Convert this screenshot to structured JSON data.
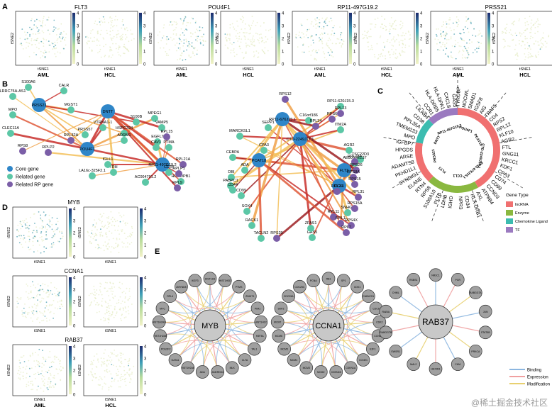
{
  "panel_labels": [
    "A",
    "B",
    "C",
    "D",
    "E"
  ],
  "panelA": {
    "genes": [
      "FLT3",
      "POU4F1",
      "RP11-497G19.2",
      "PRSS21"
    ],
    "groups": [
      "AML",
      "HCL"
    ],
    "xlabel": "tSNE1",
    "ylabel": "tSNE2",
    "colorbar_ticks": [
      "0",
      "1",
      "2",
      "3",
      "4"
    ]
  },
  "panelB": {
    "legend": [
      {
        "label": "Core gene",
        "color": "#2f86c8"
      },
      {
        "label": "Related gene",
        "color": "#5cc7a6"
      },
      {
        "label": "Related RP gene",
        "color": "#7b5ea7"
      }
    ],
    "net1": {
      "core": [
        "PRSS21",
        "POU4F1",
        "DNTT",
        "RP11-497G19.2"
      ],
      "related": [
        "S100A6",
        "LRRC75A-AS1",
        "CALR",
        "MPO",
        "MGST1",
        "CLEC11A",
        "PRSS57",
        "VTRNA1-1",
        "HSPC324",
        "ADRM1",
        "S100B",
        "MPEG1",
        "VAMP5",
        "EGFL7",
        "CAV1",
        "PTMA",
        "TRH",
        "IGLL1",
        "CD34",
        "AC004791.2",
        "HLA-DPB1",
        "LA16c-325F2.1"
      ],
      "rp": [
        "RPS8",
        "RPLP2",
        "RPL32A",
        "RPL15",
        "RPL21A",
        "RPLP1",
        "RPL9"
      ]
    },
    "net2": {
      "core": [
        "RP11-676J15.1",
        "CTD-2249J17.1",
        "FLT3",
        "CCL1",
        "PCAT18"
      ],
      "related": [
        "MARCKSL1",
        "CEBPA",
        "SEPP1",
        "RP11-620J15.3",
        "CPA3",
        "C16orf186",
        "ITM2A",
        "AGR2",
        "TSC22D3",
        "ADA",
        "DBI",
        "PABPC1",
        "CD44",
        "CD99",
        "SOX4",
        "RACK1",
        "TACLN2",
        "AE000661.37",
        "GAS5",
        "ZFAS1",
        "SNHG6"
      ],
      "rp": [
        "RPS12",
        "RPL34",
        "RPL13",
        "RPS6",
        "RPL18A",
        "RPS26",
        "RPS8A",
        "RPS20",
        "RPL11",
        "RPS15",
        "RPL29",
        "RPL1",
        "RPS4X",
        "RPL7",
        "RPS15A",
        "RPL31"
      ]
    }
  },
  "panelC": {
    "outer_labels": [
      "TYROBP",
      "NOCWL",
      "SMAD1",
      "IGSF8",
      "AIG",
      "TRAF5",
      "CD4",
      "RPS2",
      "RPL12",
      "KLF10",
      "AGR2",
      "FTL",
      "GNG11",
      "KRCC1",
      "KDF1",
      "CPA3",
      "CD74",
      "CD99",
      "CCND3",
      "ATP8B4",
      "AXL",
      "HLA-DRB1",
      "CD34",
      "NPR3",
      "IGHD",
      "LDHB",
      "PLTB",
      "S100A10",
      "RPS8",
      "RTN4",
      "ELANE",
      "SYNDIG1",
      "PKHD1L1",
      "ADAMTS8",
      "ARSE",
      "HPGDS",
      "IGFBP7",
      "MPO",
      "TMEM233",
      "RPL35A",
      "CD38",
      "LILRB4",
      "CCR1",
      "HLA-DRB5",
      "HLA-DPA1",
      "CXCL8",
      "GAS5"
    ],
    "inner_labels": [
      "POU4F1",
      "PCAT18",
      "CTD-2249J17.1",
      "RP11-676J15.1",
      "CCL1",
      "FLT3",
      "PRSS21",
      "DNTT",
      "RP11-497G19.2"
    ],
    "legend_title": "Gene Type",
    "legend": [
      {
        "label": "lncRNA",
        "color": "#f07070"
      },
      {
        "label": "Enzyme",
        "color": "#8ab840"
      },
      {
        "label": "Chemokine Ligand",
        "color": "#3cbcb0"
      },
      {
        "label": "TF",
        "color": "#9b7ac0"
      }
    ]
  },
  "panelD": {
    "genes": [
      "MYB",
      "CCNA1",
      "RAB37"
    ],
    "groups": [
      "AML",
      "HCL"
    ],
    "xlabel": "tSNE1",
    "ylabel": "tSNE2",
    "colorbar_ticks": [
      "0",
      "1",
      "2",
      "3",
      "4"
    ]
  },
  "panelE": {
    "hubs": [
      {
        "name": "MYB",
        "targets": [
          "HIST1H3",
          "HIST1H3D",
          "PTMS",
          "ZNHIT1",
          "PIM1",
          "HIST1H1C",
          "H3F3A",
          "TAL1",
          "CLTA",
          "MLK",
          "ANKRD54",
          "ADA",
          "HIST1H2AE",
          "GATA1",
          "POU2F2",
          "HIST1H2AB",
          "HIST1H2AO",
          "MYC",
          "RPL4",
          "ZMYND8",
          "IKZF3"
        ]
      },
      {
        "name": "CCNA1",
        "targets": [
          "RB1",
          "SP1",
          "CDK1",
          "CABLES1",
          "CDC6",
          "CDK2",
          "CCNB1",
          "E2F1",
          "CCNE1",
          "CDKN1A",
          "CDKN1B",
          "MCM2",
          "MCM3",
          "MCM4",
          "MCM5",
          "MCM6",
          "MCM7",
          "SKP2",
          "CDC25A",
          "CDC25C",
          "PCNA"
        ]
      },
      {
        "name": "RAB37",
        "targets": [
          "NR3C1",
          "PGR",
          "RABGGTA",
          "JUN",
          "STAT5B",
          "PRKCA",
          "CHM",
          "HEXIM1",
          "MAL2",
          "EWSR1",
          "RABGGTB",
          "RABIA",
          "CHML",
          "RSBS1"
        ]
      }
    ],
    "legend": [
      {
        "label": "Binding",
        "color": "#8cb6e0"
      },
      {
        "label": "Expression",
        "color": "#f0a0a0"
      },
      {
        "label": "Modification",
        "color": "#e8d070"
      }
    ]
  },
  "watermark": "@稀土掘金技术社区"
}
